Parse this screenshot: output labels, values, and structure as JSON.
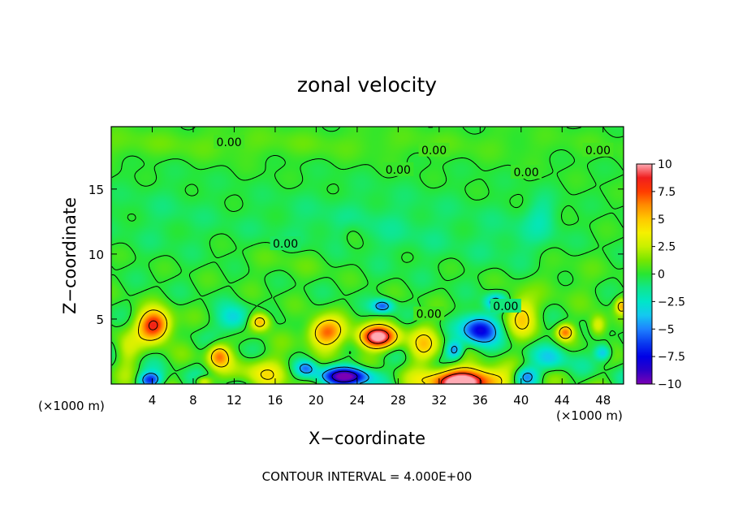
{
  "chart_data": {
    "type": "heatmap",
    "title": "zonal velocity",
    "xlabel": "X−coordinate",
    "ylabel": "Z−coordinate",
    "x_unit_left": "(×1000 m)",
    "x_unit_right": "(×1000 m)",
    "footer": "CONTOUR INTERVAL = 4.000E+00",
    "xlim": [
      0,
      50
    ],
    "ylim": [
      0,
      19.8
    ],
    "x_ticks": [
      4,
      8,
      12,
      16,
      20,
      24,
      28,
      32,
      36,
      40,
      44,
      48
    ],
    "y_ticks": [
      5,
      10,
      15
    ],
    "colorbar": {
      "min": -10,
      "max": 10,
      "tick_values": [
        10,
        7.5,
        5,
        2.5,
        0,
        -2.5,
        -5,
        -7.5,
        -10
      ],
      "tick_labels": [
        "10",
        "7.5",
        "5",
        "2.5",
        "0",
        "−2.5",
        "−5",
        "−7.5",
        "−10"
      ],
      "stops": [
        {
          "value": -10,
          "color": "#7a00b4"
        },
        {
          "value": -8.75,
          "color": "#2c00c8"
        },
        {
          "value": -7.5,
          "color": "#0000e6"
        },
        {
          "value": -6.25,
          "color": "#0a3cf0"
        },
        {
          "value": -5,
          "color": "#1e82ff"
        },
        {
          "value": -3.75,
          "color": "#14c8f0"
        },
        {
          "value": -2.5,
          "color": "#00e6c8"
        },
        {
          "value": -1.25,
          "color": "#10e68c"
        },
        {
          "value": 0,
          "color": "#28e632"
        },
        {
          "value": 1.25,
          "color": "#78e600"
        },
        {
          "value": 2.5,
          "color": "#c8f000"
        },
        {
          "value": 3.75,
          "color": "#f5f000"
        },
        {
          "value": 5,
          "color": "#ffc800"
        },
        {
          "value": 6.25,
          "color": "#ff8c00"
        },
        {
          "value": 7.5,
          "color": "#ff3c00"
        },
        {
          "value": 8.75,
          "color": "#f01e1e"
        },
        {
          "value": 10,
          "color": "#ffaab4"
        }
      ]
    },
    "contour_labels": [
      {
        "text": "0.00",
        "x": 11.5,
        "z": 18.6
      },
      {
        "text": "0.00",
        "x": 31.5,
        "z": 18.0
      },
      {
        "text": "0.00",
        "x": 47.5,
        "z": 18.0
      },
      {
        "text": "0.00",
        "x": 28.0,
        "z": 16.5
      },
      {
        "text": "0.00",
        "x": 40.5,
        "z": 16.3
      },
      {
        "text": "0.00",
        "x": 17.0,
        "z": 10.8
      },
      {
        "text": "0.00",
        "x": 31.0,
        "z": 5.4
      },
      {
        "text": "0.00",
        "x": 38.5,
        "z": 6.0
      }
    ],
    "field_features": [
      {
        "x": 0,
        "z": 18.5,
        "value": 0.8,
        "sx": 50,
        "sz": 1.2
      },
      {
        "x": 25,
        "z": 12,
        "value": -1.0,
        "sx": 12,
        "sz": 3
      },
      {
        "x": 5,
        "z": 13,
        "value": -0.6,
        "sx": 5,
        "sz": 3
      },
      {
        "x": 40,
        "z": 11,
        "value": -0.8,
        "sx": 4,
        "sz": 2
      },
      {
        "x": 18,
        "z": 9.5,
        "value": 0.8,
        "sx": 6,
        "sz": 1.5
      },
      {
        "x": 44,
        "z": 8,
        "value": 0.6,
        "sx": 4,
        "sz": 2
      },
      {
        "x": 4.2,
        "z": 4.5,
        "value": 9.0,
        "sx": 1.6,
        "sz": 1.2
      },
      {
        "x": 10.5,
        "z": 2.2,
        "value": 6.0,
        "sx": 1.1,
        "sz": 0.9
      },
      {
        "x": 14.5,
        "z": 4.8,
        "value": 6.0,
        "sx": 1.0,
        "sz": 0.7
      },
      {
        "x": 21.0,
        "z": 4.0,
        "value": 7.0,
        "sx": 1.8,
        "sz": 1.1
      },
      {
        "x": 26.0,
        "z": 3.6,
        "value": 10.5,
        "sx": 1.9,
        "sz": 0.9
      },
      {
        "x": 34.5,
        "z": 0.2,
        "value": 12.0,
        "sx": 3.5,
        "sz": 1.0
      },
      {
        "x": 40.0,
        "z": 5.2,
        "value": 4.5,
        "sx": 1.5,
        "sz": 1.5
      },
      {
        "x": 44.3,
        "z": 4.0,
        "value": 6.0,
        "sx": 0.8,
        "sz": 0.6
      },
      {
        "x": 47.5,
        "z": 4.5,
        "value": 4.0,
        "sx": 0.8,
        "sz": 0.8
      },
      {
        "x": 49.8,
        "z": 6.0,
        "value": 5.0,
        "sx": 0.6,
        "sz": 0.6
      },
      {
        "x": 1.5,
        "z": 2.5,
        "value": 2.5,
        "sx": 1.2,
        "sz": 1.5
      },
      {
        "x": 15,
        "z": 1.0,
        "value": 3.0,
        "sx": 3.0,
        "sz": 1.2
      },
      {
        "x": 3.8,
        "z": 0.3,
        "value": -6.5,
        "sx": 1.1,
        "sz": 0.6
      },
      {
        "x": 9.0,
        "z": 0.2,
        "value": 4.0,
        "sx": 0.8,
        "sz": 0.4
      },
      {
        "x": 23.0,
        "z": 0.6,
        "value": -9.5,
        "sx": 2.5,
        "sz": 0.7
      },
      {
        "x": 19.0,
        "z": 1.2,
        "value": -4.5,
        "sx": 1.0,
        "sz": 0.6
      },
      {
        "x": 26.5,
        "z": 6.0,
        "value": -5.5,
        "sx": 1.0,
        "sz": 0.5
      },
      {
        "x": 36.0,
        "z": 4.2,
        "value": -8.0,
        "sx": 1.7,
        "sz": 1.1
      },
      {
        "x": 33.5,
        "z": 2.6,
        "value": -5.0,
        "sx": 0.8,
        "sz": 0.7
      },
      {
        "x": 40.5,
        "z": 0.6,
        "value": -5.0,
        "sx": 1.2,
        "sz": 0.7
      },
      {
        "x": 48.0,
        "z": 2.4,
        "value": -4.5,
        "sx": 0.8,
        "sz": 0.6
      },
      {
        "x": 37.5,
        "z": 6.3,
        "value": -5.0,
        "sx": 1.0,
        "sz": 0.6
      },
      {
        "x": 12.0,
        "z": 5.0,
        "value": -3.5,
        "sx": 1.5,
        "sz": 1.0
      },
      {
        "x": 43.0,
        "z": 2.0,
        "value": -3.0,
        "sx": 1.5,
        "sz": 1.0
      },
      {
        "x": 30.5,
        "z": 3.0,
        "value": 4.0,
        "sx": 1.5,
        "sz": 1.5
      },
      {
        "x": 42.0,
        "z": 13.0,
        "value": -1.5,
        "sx": 1.5,
        "sz": 1.5
      },
      {
        "x": 23.5,
        "z": 11.5,
        "value": 1.0,
        "sx": 1.0,
        "sz": 1.0
      }
    ]
  }
}
